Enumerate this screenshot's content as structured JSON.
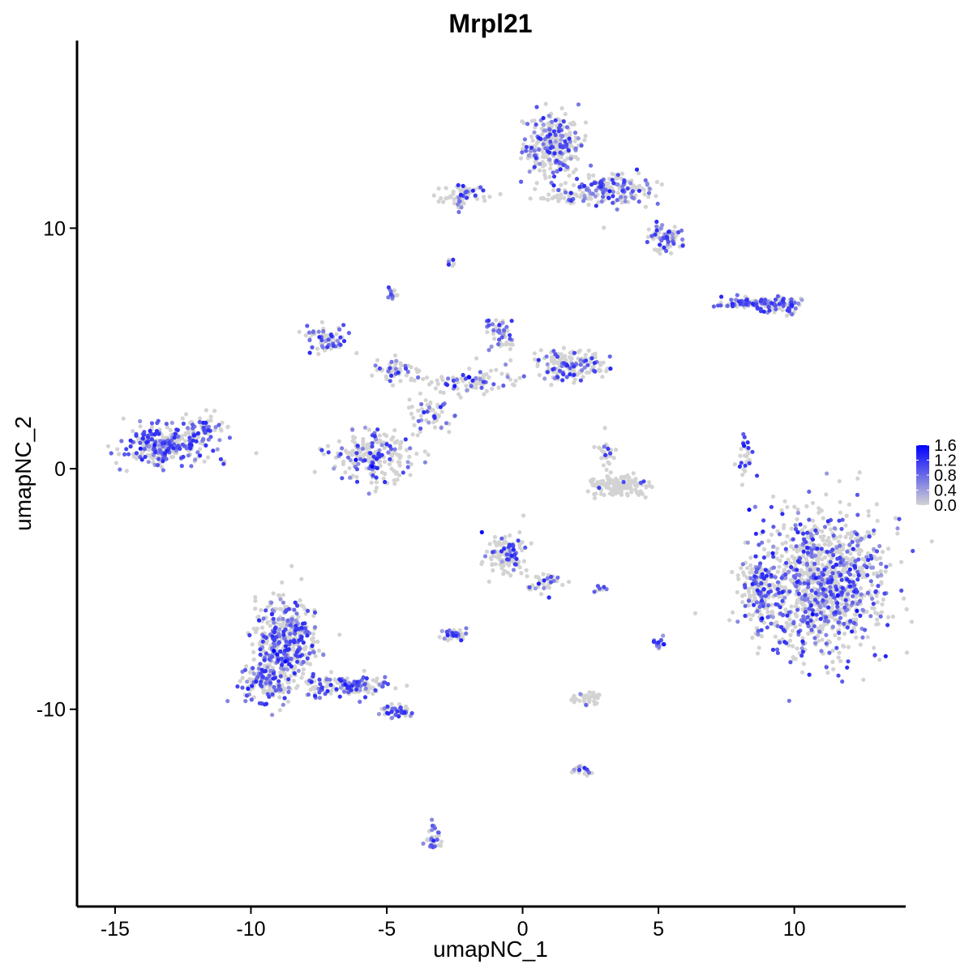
{
  "chart_data": {
    "type": "scatter",
    "title": "Mrpl21",
    "xlabel": "umapNC_1",
    "ylabel": "umapNC_2",
    "xlim": [
      -16.4,
      14.1
    ],
    "ylim": [
      -18.2,
      17.8
    ],
    "x_ticks": [
      -15,
      -10,
      -5,
      0,
      5,
      10
    ],
    "y_ticks": [
      -10,
      0,
      10
    ],
    "x_tick_labels": [
      "-15",
      "-10",
      "-5",
      "0",
      "5",
      "10"
    ],
    "y_tick_labels": [
      "-10",
      "0",
      "10"
    ],
    "grid": false,
    "color_scale": {
      "low_color": "#d3d3d3",
      "high_color": "#0000ff",
      "min": 0.0,
      "max": 1.6,
      "tick_values": [
        1.6,
        1.2,
        0.8,
        0.4,
        0.0
      ],
      "tick_labels": [
        "1.6",
        "1.2",
        "0.8",
        "0.4",
        "0.0"
      ],
      "legend_position": "right"
    },
    "clusters": [
      {
        "cx": 11.0,
        "cy": -4.8,
        "rx": 2.1,
        "ry": 2.6,
        "n": 1100,
        "expr": 0.35
      },
      {
        "cx": 8.7,
        "cy": -5.0,
        "rx": 0.6,
        "ry": 1.4,
        "n": 150,
        "expr": 0.35
      },
      {
        "cx": -8.7,
        "cy": -7.2,
        "rx": 1.0,
        "ry": 1.6,
        "n": 450,
        "expr": 0.42
      },
      {
        "cx": -9.5,
        "cy": -8.9,
        "rx": 0.8,
        "ry": 0.8,
        "n": 120,
        "expr": 0.45
      },
      {
        "cx": -6.5,
        "cy": -9.0,
        "rx": 1.5,
        "ry": 0.4,
        "n": 160,
        "expr": 0.4
      },
      {
        "cx": -4.6,
        "cy": -10.1,
        "rx": 0.6,
        "ry": 0.25,
        "n": 50,
        "expr": 0.45
      },
      {
        "cx": -13.1,
        "cy": 1.0,
        "rx": 1.4,
        "ry": 0.7,
        "n": 300,
        "expr": 0.5
      },
      {
        "cx": -11.7,
        "cy": 1.8,
        "rx": 0.6,
        "ry": 0.5,
        "n": 40,
        "expr": 0.3
      },
      {
        "cx": 1.1,
        "cy": 13.4,
        "rx": 0.9,
        "ry": 1.3,
        "n": 280,
        "expr": 0.35
      },
      {
        "cx": 3.4,
        "cy": 11.6,
        "rx": 1.3,
        "ry": 0.6,
        "n": 160,
        "expr": 0.45
      },
      {
        "cx": 5.2,
        "cy": 9.6,
        "rx": 0.6,
        "ry": 0.5,
        "n": 80,
        "expr": 0.5
      },
      {
        "cx": -2.2,
        "cy": 11.4,
        "rx": 0.8,
        "ry": 0.4,
        "n": 70,
        "expr": 0.25
      },
      {
        "cx": 1.6,
        "cy": 11.3,
        "rx": 0.9,
        "ry": 0.3,
        "n": 40,
        "expr": 0.2
      },
      {
        "cx": -7.2,
        "cy": 5.4,
        "rx": 0.7,
        "ry": 0.5,
        "n": 60,
        "expr": 0.55
      },
      {
        "cx": -4.6,
        "cy": 4.1,
        "rx": 0.8,
        "ry": 0.5,
        "n": 50,
        "expr": 0.4
      },
      {
        "cx": -5.5,
        "cy": 0.6,
        "rx": 1.4,
        "ry": 1.0,
        "n": 220,
        "expr": 0.3
      },
      {
        "cx": -2.0,
        "cy": 3.6,
        "rx": 1.5,
        "ry": 0.5,
        "n": 90,
        "expr": 0.3
      },
      {
        "cx": 1.8,
        "cy": 4.3,
        "rx": 1.1,
        "ry": 0.6,
        "n": 160,
        "expr": 0.3
      },
      {
        "cx": -0.8,
        "cy": 5.5,
        "rx": 0.5,
        "ry": 0.7,
        "n": 50,
        "expr": 0.55
      },
      {
        "cx": -3.3,
        "cy": 2.3,
        "rx": 0.9,
        "ry": 0.7,
        "n": 50,
        "expr": 0.25
      },
      {
        "cx": 3.4,
        "cy": -0.7,
        "rx": 1.0,
        "ry": 0.4,
        "n": 140,
        "expr": 0.05
      },
      {
        "cx": 3.1,
        "cy": 0.6,
        "rx": 0.3,
        "ry": 0.6,
        "n": 30,
        "expr": 0.25
      },
      {
        "cx": 8.3,
        "cy": 6.9,
        "rx": 1.0,
        "ry": 0.2,
        "n": 80,
        "expr": 0.55
      },
      {
        "cx": 9.4,
        "cy": 6.8,
        "rx": 0.8,
        "ry": 0.3,
        "n": 70,
        "expr": 0.45
      },
      {
        "cx": 8.2,
        "cy": 0.4,
        "rx": 0.3,
        "ry": 0.8,
        "n": 30,
        "expr": 0.3
      },
      {
        "cx": -0.6,
        "cy": -3.6,
        "rx": 0.6,
        "ry": 0.7,
        "n": 140,
        "expr": 0.25
      },
      {
        "cx": 0.8,
        "cy": -4.8,
        "rx": 0.6,
        "ry": 0.5,
        "n": 40,
        "expr": 0.3
      },
      {
        "cx": -2.5,
        "cy": -6.9,
        "rx": 0.4,
        "ry": 0.2,
        "n": 40,
        "expr": 0.45
      },
      {
        "cx": 2.3,
        "cy": -9.5,
        "rx": 0.5,
        "ry": 0.3,
        "n": 40,
        "expr": 0.2
      },
      {
        "cx": -3.3,
        "cy": -15.3,
        "rx": 0.3,
        "ry": 0.5,
        "n": 30,
        "expr": 0.6
      },
      {
        "cx": 5.0,
        "cy": -7.3,
        "rx": 0.15,
        "ry": 0.3,
        "n": 15,
        "expr": 0.6
      },
      {
        "cx": -4.8,
        "cy": 7.3,
        "rx": 0.2,
        "ry": 0.25,
        "n": 12,
        "expr": 0.5
      },
      {
        "cx": -2.7,
        "cy": 8.6,
        "rx": 0.2,
        "ry": 0.15,
        "n": 8,
        "expr": 0.3
      },
      {
        "cx": 2.2,
        "cy": -12.5,
        "rx": 0.4,
        "ry": 0.2,
        "n": 20,
        "expr": 0.2
      },
      {
        "cx": 2.9,
        "cy": -5.0,
        "rx": 0.2,
        "ry": 0.1,
        "n": 8,
        "expr": 0.45
      }
    ]
  }
}
